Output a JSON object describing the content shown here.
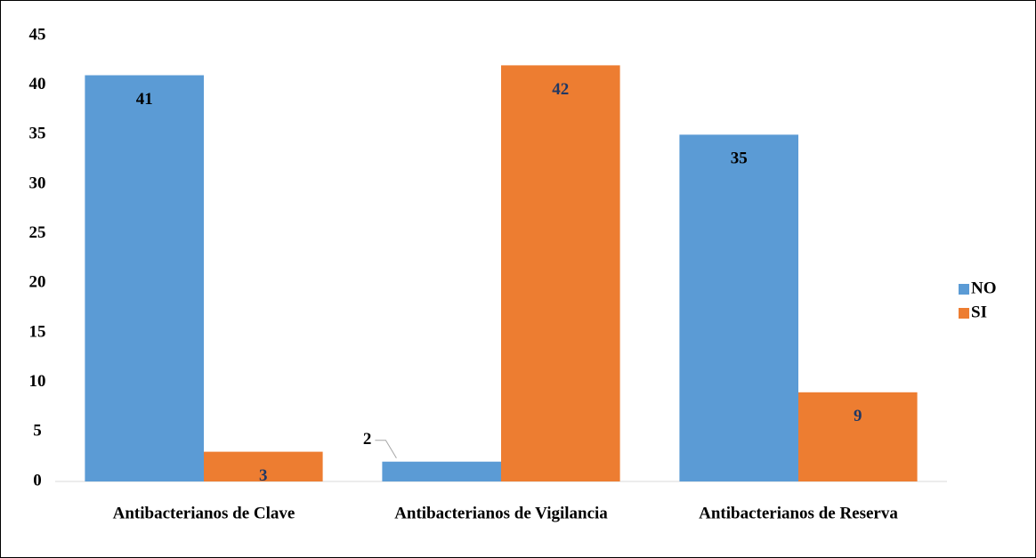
{
  "chart_data": {
    "type": "bar",
    "categories": [
      "Antibacterianos de Clave",
      "Antibacterianos de Vigilancia",
      "Antibacterianos de Reserva"
    ],
    "series": [
      {
        "name": "NO",
        "color": "#5b9bd5",
        "values": [
          41,
          2,
          35
        ]
      },
      {
        "name": "SI",
        "color": "#ed7d31",
        "values": [
          3,
          42,
          9
        ]
      }
    ],
    "ylim": [
      0,
      45
    ],
    "yticks": [
      0,
      5,
      10,
      15,
      20,
      25,
      30,
      35,
      40,
      45
    ],
    "grid": false,
    "legend": "right"
  }
}
